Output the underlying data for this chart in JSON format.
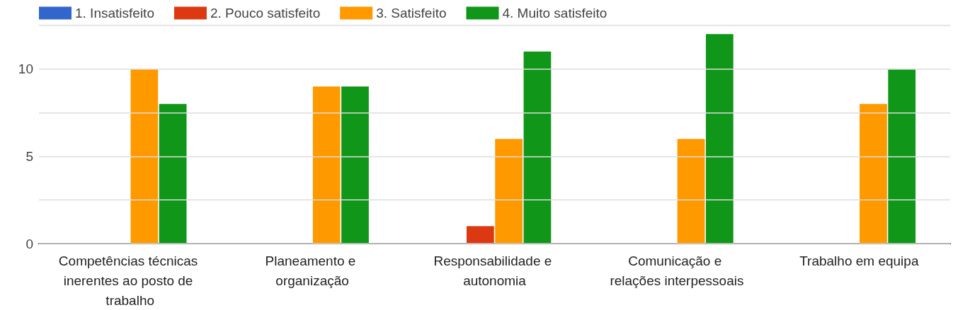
{
  "chart_data": {
    "type": "bar",
    "categories": [
      "Competências técnicas inerentes ao posto de trabalho",
      "Planeamento e organização",
      "Responsabilidade e autonomia",
      "Comunicação e relações interpessoais",
      "Trabalho em equipa"
    ],
    "series": [
      {
        "name": "1. Insatisfeito",
        "color": "#3366cc",
        "values": [
          0,
          0,
          0,
          0,
          0
        ]
      },
      {
        "name": "2. Pouco satisfeito",
        "color": "#dc3912",
        "values": [
          0,
          0,
          1,
          0,
          0
        ]
      },
      {
        "name": "3. Satisfeito",
        "color": "#ff9900",
        "values": [
          10,
          9,
          6,
          6,
          8
        ]
      },
      {
        "name": "4. Muito satisfeito",
        "color": "#109618",
        "values": [
          8,
          9,
          11,
          12,
          10
        ]
      }
    ],
    "ylim": [
      0,
      12.5
    ],
    "yticks": [
      0,
      {
        "value": 2.5,
        "label": null
      },
      5,
      {
        "value": 7.5,
        "label": null
      },
      10,
      {
        "value": 12.5,
        "label": null
      }
    ],
    "grid": "y",
    "legend": "top left"
  }
}
